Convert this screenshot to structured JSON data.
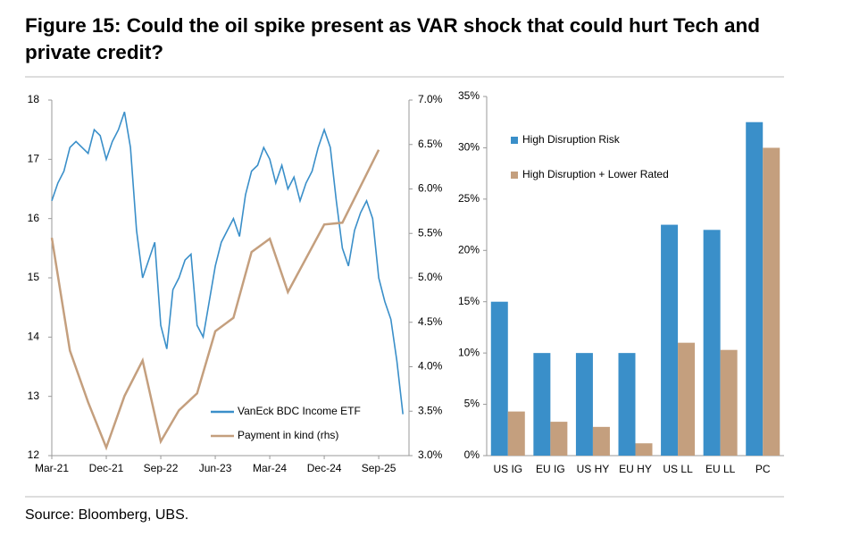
{
  "title": "Figure 15: Could the oil spike present as VAR shock that could hurt Tech and private credit?",
  "source": "Source: Bloomberg, UBS.",
  "chart_data": [
    {
      "type": "line",
      "x": [
        "Mar-21",
        "Apr-21",
        "May-21",
        "Jun-21",
        "Jul-21",
        "Aug-21",
        "Sep-21",
        "Oct-21",
        "Nov-21",
        "Dec-21",
        "Jan-22",
        "Feb-22",
        "Mar-22",
        "Apr-22",
        "May-22",
        "Jun-22",
        "Jul-22",
        "Aug-22",
        "Sep-22",
        "Oct-22",
        "Nov-22",
        "Dec-22",
        "Jan-23",
        "Feb-23",
        "Mar-23",
        "Apr-23",
        "May-23",
        "Jun-23",
        "Jul-23",
        "Aug-23",
        "Sep-23",
        "Oct-23",
        "Nov-23",
        "Dec-23",
        "Jan-24",
        "Feb-24",
        "Mar-24",
        "Apr-24",
        "May-24",
        "Jun-24",
        "Jul-24",
        "Aug-24",
        "Sep-24",
        "Oct-24",
        "Nov-24",
        "Dec-24",
        "Jan-25",
        "Feb-25",
        "Mar-25",
        "Apr-25",
        "May-25",
        "Jun-25",
        "Jul-25",
        "Aug-25",
        "Sep-25",
        "Oct-25",
        "Nov-25",
        "Dec-25",
        "Jan-26"
      ],
      "xticks": [
        "Mar-21",
        "Dec-21",
        "Sep-22",
        "Jun-23",
        "Mar-24",
        "Dec-24",
        "Sep-25"
      ],
      "ylim": [
        12,
        18
      ],
      "yticks": [
        12,
        13,
        14,
        15,
        16,
        17,
        18
      ],
      "y2lim": [
        3,
        7
      ],
      "y2ticks": [
        {
          "value": 3.0,
          "label": "3.0%"
        },
        {
          "value": 3.5,
          "label": "3.5%"
        },
        {
          "value": 4.0,
          "label": "4.0%"
        },
        {
          "value": 4.5,
          "label": "4.5%"
        },
        {
          "value": 5.0,
          "label": "5.0%"
        },
        {
          "value": 5.5,
          "label": "5.5%"
        },
        {
          "value": 6.0,
          "label": "6.0%"
        },
        {
          "value": 6.5,
          "label": "6.5%"
        },
        {
          "value": 7.0,
          "label": "7.0%"
        }
      ],
      "legend": "lower-right",
      "series": [
        {
          "name": "VanEck BDC Income ETF",
          "color": "#3a8fc9",
          "values": [
            16.3,
            16.6,
            16.8,
            17.2,
            17.3,
            17.2,
            17.1,
            17.5,
            17.4,
            17.0,
            17.3,
            17.5,
            17.8,
            17.2,
            15.8,
            15.0,
            15.3,
            15.6,
            14.2,
            13.8,
            14.8,
            15.0,
            15.3,
            15.4,
            14.2,
            14.0,
            14.6,
            15.2,
            15.6,
            15.8,
            16.0,
            15.7,
            16.4,
            16.8,
            16.9,
            17.2,
            17.0,
            16.6,
            16.9,
            16.5,
            16.7,
            16.3,
            16.6,
            16.8,
            17.2,
            17.5,
            17.2,
            16.3,
            15.5,
            15.2,
            15.8,
            16.1,
            16.3,
            16.0,
            15.0,
            14.6,
            14.3,
            13.6,
            12.7
          ]
        },
        {
          "name": "Payment in kind (rhs)",
          "color": "#c49f7e",
          "axis": "y2",
          "x": [
            "Mar-21",
            "Jun-21",
            "Sep-21",
            "Dec-21",
            "Mar-22",
            "Jun-22",
            "Sep-22",
            "Dec-22",
            "Mar-23",
            "Jun-23",
            "Sep-23",
            "Dec-23",
            "Mar-24",
            "Jun-24",
            "Dec-24",
            "Mar-25",
            "Sep-25"
          ],
          "values": [
            5.45,
            4.18,
            3.6,
            3.09,
            3.67,
            4.07,
            3.16,
            3.51,
            3.7,
            4.4,
            4.55,
            5.29,
            5.44,
            4.84,
            5.6,
            5.62,
            6.44
          ]
        }
      ]
    },
    {
      "type": "bar",
      "categories": [
        "US IG",
        "EU IG",
        "US HY",
        "EU HY",
        "US LL",
        "EU LL",
        "PC"
      ],
      "ylim": [
        0,
        35
      ],
      "yticks": [
        {
          "value": 0,
          "label": "0%"
        },
        {
          "value": 5,
          "label": "5%"
        },
        {
          "value": 10,
          "label": "10%"
        },
        {
          "value": 15,
          "label": "15%"
        },
        {
          "value": 20,
          "label": "20%"
        },
        {
          "value": 25,
          "label": "25%"
        },
        {
          "value": 30,
          "label": "30%"
        },
        {
          "value": 35,
          "label": "35%"
        }
      ],
      "legend": "upper-left",
      "series": [
        {
          "name": "High Disruption Risk",
          "color": "#3a8fc9",
          "values": [
            15,
            10,
            10,
            10,
            22.5,
            22,
            32.5
          ]
        },
        {
          "name": "High Disruption + Lower Rated",
          "color": "#c49f7e",
          "values": [
            4.3,
            3.3,
            2.8,
            1.2,
            11,
            10.3,
            30
          ]
        }
      ]
    }
  ]
}
